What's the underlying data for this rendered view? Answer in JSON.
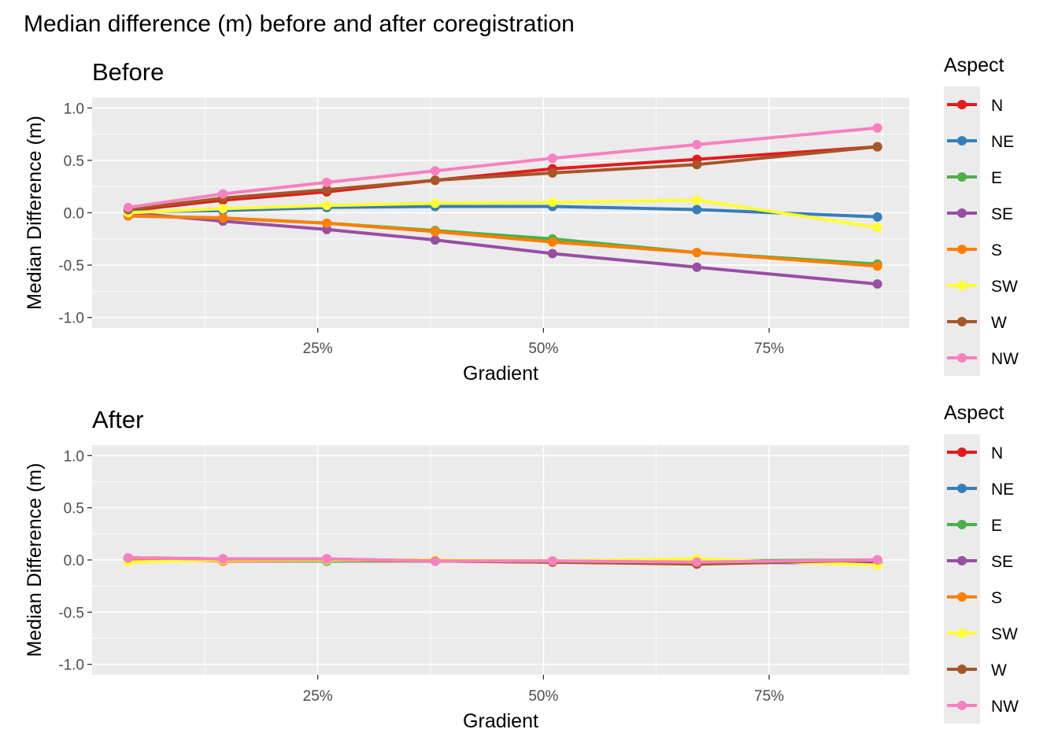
{
  "figure": {
    "title": "Median difference (m) before and after coregistration"
  },
  "legend": {
    "title": "Aspect",
    "labels": [
      "N",
      "NE",
      "E",
      "SE",
      "S",
      "SW",
      "W",
      "NW"
    ]
  },
  "colors": {
    "N": "#E41A1C",
    "NE": "#377EB8",
    "E": "#4DAF4A",
    "SE": "#984EA3",
    "S": "#FF7F00",
    "SW": "#FFFF33",
    "W": "#A65628",
    "NW": "#F781BF",
    "panel_background": "#EBEBEB",
    "grid": "#FFFFFF",
    "legend_key_background": "#EBEBEB"
  },
  "chart_data": [
    {
      "type": "line",
      "title": "Before",
      "xlabel": "Gradient",
      "ylabel": "Median Difference (m)",
      "xlim": [
        0,
        0.9
      ],
      "ylim": [
        -1.0,
        1.0
      ],
      "x_ticks": [
        0.25,
        0.5,
        0.75
      ],
      "x_tick_labels": [
        "25%",
        "50%",
        "75%"
      ],
      "y_ticks": [
        -1.0,
        -0.5,
        0.0,
        0.5,
        1.0
      ],
      "y_tick_labels": [
        "-1.0",
        "-0.5",
        "0.0",
        "0.5",
        "1.0"
      ],
      "grid": true,
      "legend_position": "right",
      "x": [
        0.04,
        0.145,
        0.26,
        0.38,
        0.51,
        0.67,
        0.87
      ],
      "series": [
        {
          "name": "N",
          "values": [
            0.02,
            0.12,
            0.2,
            0.31,
            0.42,
            0.51,
            0.63
          ]
        },
        {
          "name": "NE",
          "values": [
            0.01,
            0.02,
            0.05,
            0.06,
            0.06,
            0.03,
            -0.04
          ]
        },
        {
          "name": "E",
          "values": [
            -0.03,
            -0.05,
            -0.1,
            -0.17,
            -0.25,
            -0.38,
            -0.49
          ]
        },
        {
          "name": "SE",
          "values": [
            0.0,
            -0.08,
            -0.16,
            -0.26,
            -0.39,
            -0.52,
            -0.68
          ]
        },
        {
          "name": "S",
          "values": [
            -0.03,
            -0.05,
            -0.1,
            -0.18,
            -0.28,
            -0.38,
            -0.51
          ]
        },
        {
          "name": "SW",
          "values": [
            0.0,
            0.04,
            0.07,
            0.09,
            0.1,
            0.12,
            -0.14
          ]
        },
        {
          "name": "W",
          "values": [
            0.03,
            0.14,
            0.22,
            0.31,
            0.38,
            0.46,
            0.63
          ]
        },
        {
          "name": "NW",
          "values": [
            0.05,
            0.18,
            0.29,
            0.4,
            0.52,
            0.65,
            0.81
          ]
        }
      ]
    },
    {
      "type": "line",
      "title": "After",
      "xlabel": "Gradient",
      "ylabel": "Median Difference (m)",
      "xlim": [
        0,
        0.9
      ],
      "ylim": [
        -1.0,
        1.0
      ],
      "x_ticks": [
        0.25,
        0.5,
        0.75
      ],
      "x_tick_labels": [
        "25%",
        "50%",
        "75%"
      ],
      "y_ticks": [
        -1.0,
        -0.5,
        0.0,
        0.5,
        1.0
      ],
      "y_tick_labels": [
        "-1.0",
        "-0.5",
        "0.0",
        "0.5",
        "1.0"
      ],
      "grid": true,
      "legend_position": "right",
      "x": [
        0.04,
        0.145,
        0.26,
        0.38,
        0.51,
        0.67,
        0.87
      ],
      "series": [
        {
          "name": "N",
          "values": [
            0.01,
            0.0,
            0.0,
            -0.01,
            -0.02,
            -0.02,
            0.0
          ]
        },
        {
          "name": "NE",
          "values": [
            0.01,
            -0.01,
            -0.01,
            -0.01,
            -0.01,
            -0.02,
            -0.03
          ]
        },
        {
          "name": "E",
          "values": [
            0.01,
            0.0,
            -0.01,
            -0.01,
            -0.01,
            -0.01,
            0.0
          ]
        },
        {
          "name": "SE",
          "values": [
            0.02,
            0.01,
            0.0,
            -0.01,
            -0.01,
            -0.02,
            -0.02
          ]
        },
        {
          "name": "S",
          "values": [
            0.01,
            -0.01,
            0.0,
            -0.01,
            -0.01,
            -0.02,
            0.0
          ]
        },
        {
          "name": "SW",
          "values": [
            -0.02,
            0.0,
            0.0,
            0.0,
            -0.01,
            0.01,
            -0.05
          ]
        },
        {
          "name": "W",
          "values": [
            0.02,
            0.01,
            0.01,
            -0.01,
            -0.02,
            -0.04,
            0.0
          ]
        },
        {
          "name": "NW",
          "values": [
            0.02,
            0.01,
            0.01,
            -0.01,
            -0.01,
            -0.02,
            0.0
          ]
        }
      ]
    }
  ]
}
